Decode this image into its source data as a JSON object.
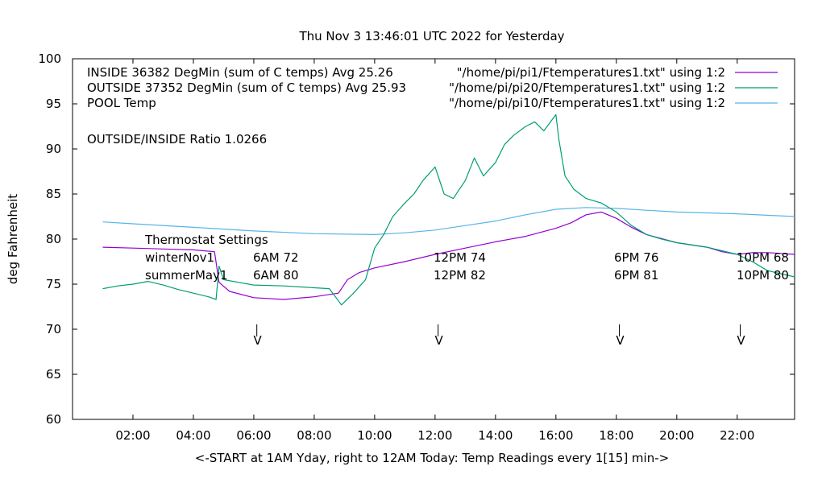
{
  "chart_data": {
    "type": "line",
    "title": "Thu Nov  3 13:46:01 UTC 2022 for Yesterday",
    "xlabel": "<-START at 1AM Yday, right to 12AM Today:  Temp Readings every 1[15] min->",
    "ylabel": "deg Fahrenheit",
    "xlim": [
      0.0,
      23.9
    ],
    "ylim": [
      60,
      100
    ],
    "yticks": [
      60,
      65,
      70,
      75,
      80,
      85,
      90,
      95,
      100
    ],
    "xticks": [
      {
        "x": 2,
        "label": "02:00"
      },
      {
        "x": 4,
        "label": "04:00"
      },
      {
        "x": 6,
        "label": "06:00"
      },
      {
        "x": 8,
        "label": "08:00"
      },
      {
        "x": 10,
        "label": "10:00"
      },
      {
        "x": 12,
        "label": "12:00"
      },
      {
        "x": 14,
        "label": "14:00"
      },
      {
        "x": 16,
        "label": "16:00"
      },
      {
        "x": 18,
        "label": "18:00"
      },
      {
        "x": 20,
        "label": "20:00"
      },
      {
        "x": 22,
        "label": "22:00"
      }
    ],
    "grid": false,
    "legend_position": "top",
    "series": [
      {
        "name": "INSIDE 36382 DegMin (sum of C temps) Avg 25.26",
        "source": "\"/home/pi/pi1/Ftemperatures1.txt\" using 1:2",
        "color": "#9400d3",
        "x": [
          1.0,
          2.0,
          3.0,
          4.0,
          4.7,
          4.85,
          5.2,
          6.0,
          7.0,
          8.0,
          8.8,
          9.1,
          9.5,
          10.0,
          11.0,
          12.0,
          13.0,
          14.0,
          15.0,
          16.0,
          16.5,
          17.0,
          17.5,
          18.0,
          18.5,
          19.0,
          20.0,
          21.0,
          21.5,
          22.0,
          22.5,
          23.0,
          23.9
        ],
        "y": [
          79.1,
          79.0,
          78.9,
          78.8,
          78.6,
          75.2,
          74.2,
          73.5,
          73.3,
          73.6,
          74.0,
          75.5,
          76.3,
          76.8,
          77.5,
          78.3,
          79.0,
          79.7,
          80.3,
          81.2,
          81.8,
          82.7,
          83.0,
          82.3,
          81.3,
          80.5,
          79.6,
          79.1,
          78.6,
          78.3,
          78.5,
          78.5,
          78.3
        ]
      },
      {
        "name": "OUTSIDE 37352 DegMin (sum of C temps) Avg 25.93",
        "source": "\"/home/pi/pi20/Ftemperatures1.txt\" using 1:2",
        "color": "#009e73",
        "x": [
          1.0,
          1.5,
          2.0,
          2.5,
          3.0,
          3.5,
          4.0,
          4.5,
          4.75,
          4.85,
          5.0,
          5.5,
          6.0,
          7.0,
          8.0,
          8.5,
          8.9,
          9.3,
          9.7,
          10.0,
          10.3,
          10.6,
          11.0,
          11.3,
          11.6,
          12.0,
          12.3,
          12.6,
          13.0,
          13.3,
          13.6,
          14.0,
          14.3,
          14.6,
          15.0,
          15.3,
          15.6,
          16.0,
          16.1,
          16.3,
          16.6,
          17.0,
          17.5,
          18.0,
          18.5,
          19.0,
          19.5,
          20.0,
          21.0,
          22.0,
          22.5,
          23.0,
          23.9
        ],
        "y": [
          74.5,
          74.8,
          75.0,
          75.3,
          74.9,
          74.4,
          74.0,
          73.6,
          73.3,
          77.0,
          75.5,
          75.2,
          74.9,
          74.8,
          74.6,
          74.5,
          72.7,
          74.0,
          75.5,
          79.0,
          80.5,
          82.5,
          84.0,
          85.0,
          86.5,
          88.0,
          85.0,
          84.5,
          86.5,
          89.0,
          87.0,
          88.5,
          90.5,
          91.5,
          92.5,
          93.0,
          92.0,
          93.8,
          91.0,
          87.0,
          85.5,
          84.5,
          84.0,
          83.0,
          81.5,
          80.5,
          80.0,
          79.6,
          79.1,
          78.3,
          77.5,
          76.5,
          75.8
        ]
      },
      {
        "name": "POOL Temp",
        "source": "\"/home/pi/pi10/Ftemperatures1.txt\" using 1:2",
        "color": "#56b4e9",
        "x": [
          1.0,
          2.0,
          4.0,
          6.0,
          8.0,
          10.0,
          11.0,
          12.0,
          13.0,
          14.0,
          15.0,
          16.0,
          17.0,
          18.0,
          19.0,
          20.0,
          22.0,
          23.9
        ],
        "y": [
          81.9,
          81.7,
          81.3,
          80.9,
          80.6,
          80.5,
          80.7,
          81.0,
          81.5,
          82.0,
          82.7,
          83.3,
          83.5,
          83.4,
          83.2,
          83.0,
          82.8,
          82.5
        ]
      }
    ],
    "annotations": {
      "ratio": "OUTSIDE/INSIDE Ratio 1.0266",
      "thermostat_title": "Thermostat Settings",
      "thermostat_rows": [
        {
          "name": "winterNov1",
          "values": [
            "6AM 72",
            "12PM 74",
            "6PM 76",
            "10PM 68"
          ]
        },
        {
          "name": "summerMay1",
          "values": [
            "6AM 80",
            "12PM 82",
            "6PM 81",
            "10PM 80"
          ]
        }
      ],
      "markers": [
        {
          "x": 6.1,
          "label": "V"
        },
        {
          "x": 12.1,
          "label": "V"
        },
        {
          "x": 18.1,
          "label": "V"
        },
        {
          "x": 22.1,
          "label": "V"
        }
      ]
    }
  }
}
